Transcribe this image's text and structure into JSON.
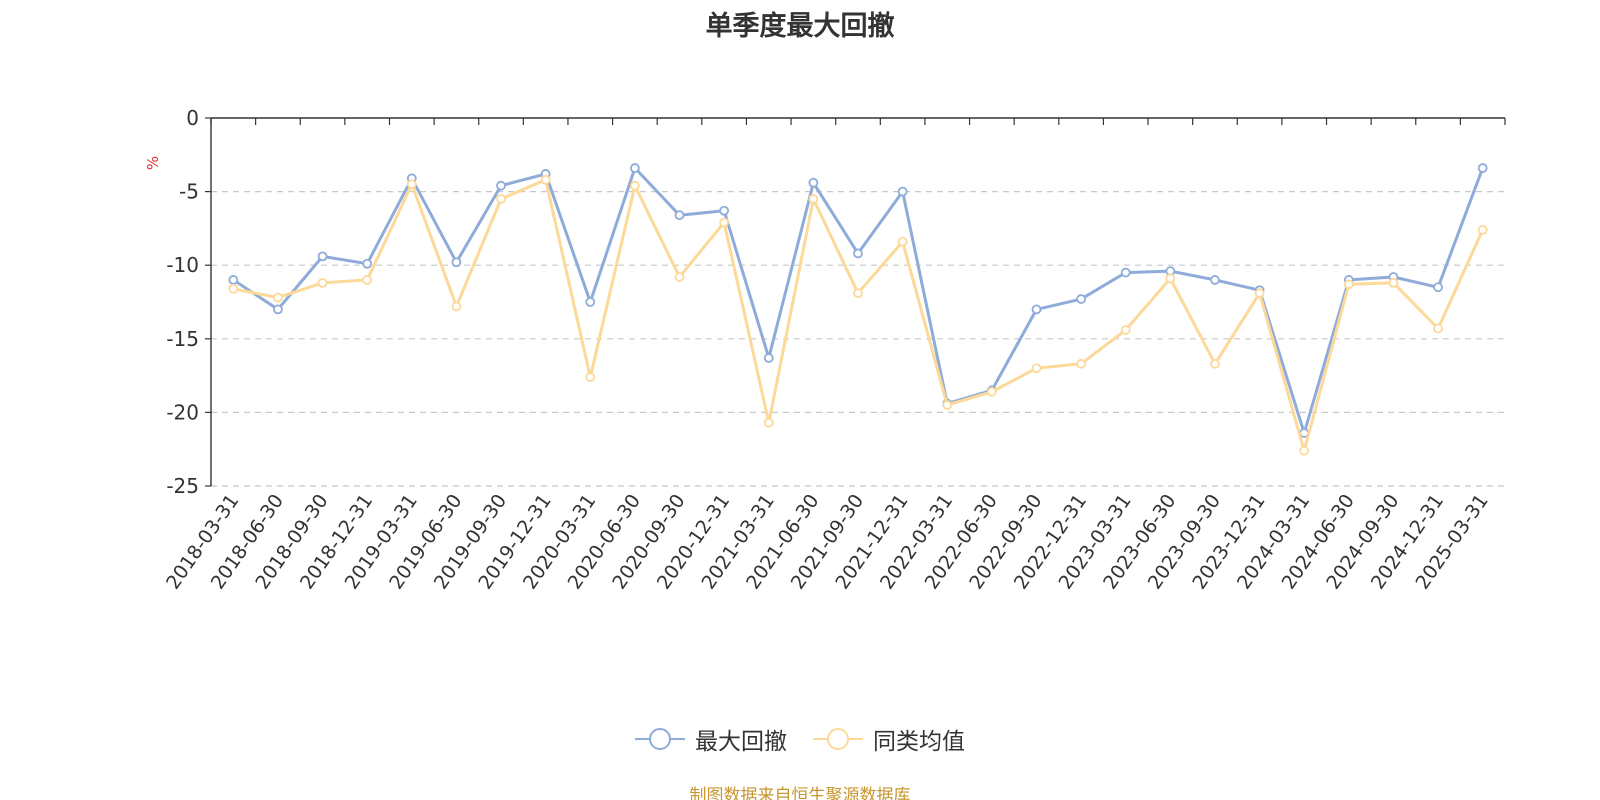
{
  "chart_data": {
    "type": "line",
    "title": "单季度最大回撤",
    "ylabel": "%",
    "xlabel": "",
    "ylim": [
      -25,
      0
    ],
    "y_ticks": [
      0,
      -5,
      -10,
      -15,
      -20,
      -25
    ],
    "grid": "horizontal-dashed",
    "legend_position": "bottom",
    "categories": [
      "2018-03-31",
      "2018-06-30",
      "2018-09-30",
      "2018-12-31",
      "2019-03-31",
      "2019-06-30",
      "2019-09-30",
      "2019-12-31",
      "2020-03-31",
      "2020-06-30",
      "2020-09-30",
      "2020-12-31",
      "2021-03-31",
      "2021-06-30",
      "2021-09-30",
      "2021-12-31",
      "2022-03-31",
      "2022-06-30",
      "2022-09-30",
      "2022-12-31",
      "2023-03-31",
      "2023-06-30",
      "2023-09-30",
      "2023-12-31",
      "2024-03-31",
      "2024-06-30",
      "2024-09-30",
      "2024-12-31",
      "2025-03-31"
    ],
    "series": [
      {
        "name": "最大回撤",
        "color": "#8eabd9",
        "values": [
          -11.0,
          -13.0,
          -9.4,
          -9.9,
          -4.1,
          -9.8,
          -4.6,
          -3.8,
          -12.5,
          -3.4,
          -6.6,
          -6.3,
          -16.3,
          -4.4,
          -9.2,
          -5.0,
          -19.4,
          -18.5,
          -13.0,
          -12.3,
          -10.5,
          -10.4,
          -11.0,
          -11.7,
          -21.4,
          -11.0,
          -10.8,
          -11.5,
          -3.4
        ]
      },
      {
        "name": "同类均值",
        "color": "#fcd999",
        "values": [
          -11.6,
          -12.2,
          -11.2,
          -11.0,
          -4.5,
          -12.8,
          -5.5,
          -4.2,
          -17.6,
          -4.6,
          -10.8,
          -7.1,
          -20.7,
          -5.5,
          -11.9,
          -8.4,
          -19.5,
          -18.6,
          -17.0,
          -16.7,
          -14.4,
          -10.9,
          -16.7,
          -11.9,
          -22.6,
          -11.3,
          -11.2,
          -14.3,
          -7.6
        ]
      }
    ]
  },
  "footer_note": "制图数据来自恒生聚源数据库"
}
